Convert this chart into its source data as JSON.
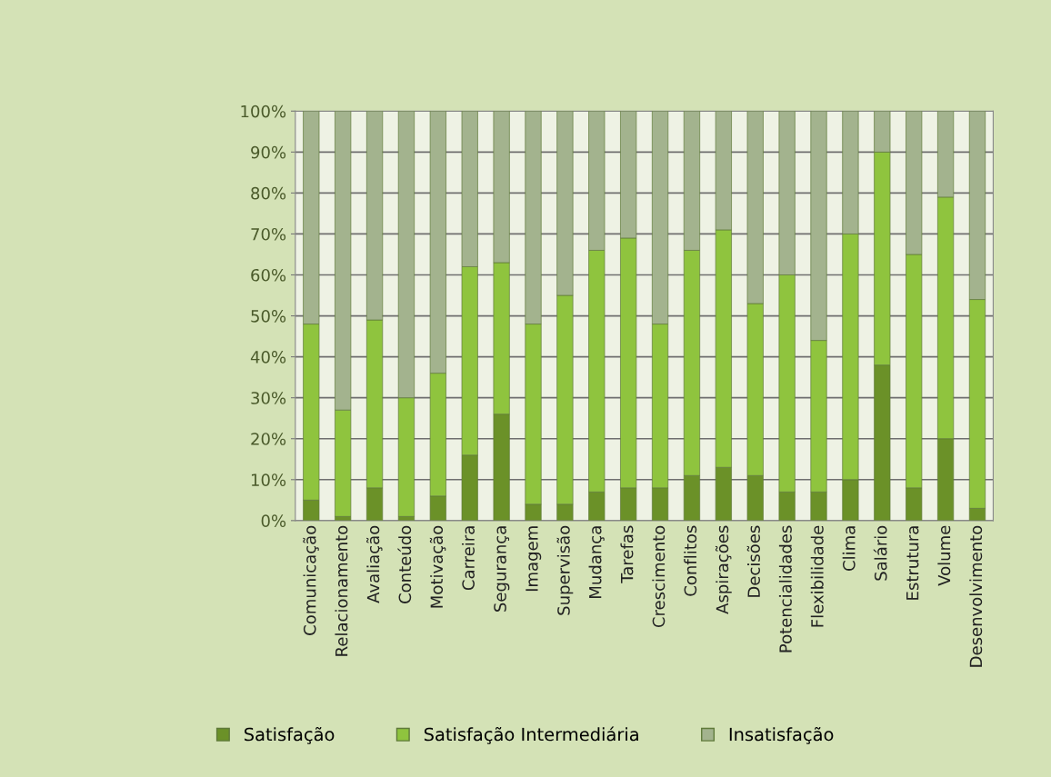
{
  "chart_data": {
    "type": "bar",
    "stacked": true,
    "categories": [
      "Comunicação",
      "Relacionamento",
      "Avaliação",
      "Conteúdo",
      "Motivação",
      "Carreira",
      "Segurança",
      "Imagem",
      "Supervisão",
      "Mudança",
      "Tarefas",
      "Crescimento",
      "Conflitos",
      "Aspirações",
      "Decisões",
      "Potencialidades",
      "Flexibilidade",
      "Clima",
      "Salário",
      "Estrutura",
      "Volume",
      "Desenvolvimento"
    ],
    "series": [
      {
        "name": "Satisfação",
        "color": "#6b9128",
        "values": [
          5,
          1,
          8,
          1,
          6,
          16,
          26,
          4,
          4,
          7,
          8,
          8,
          11,
          13,
          11,
          7,
          7,
          10,
          38,
          8,
          20,
          3
        ]
      },
      {
        "name": "Satisfação Intermediária",
        "color": "#8fc43e",
        "values": [
          43,
          26,
          41,
          29,
          30,
          46,
          37,
          44,
          51,
          59,
          61,
          40,
          55,
          58,
          42,
          53,
          37,
          60,
          52,
          57,
          59,
          51
        ]
      },
      {
        "name": "Insatisfação",
        "color": "#a3b38e",
        "values": [
          52,
          73,
          51,
          70,
          64,
          38,
          37,
          52,
          45,
          34,
          31,
          52,
          34,
          29,
          47,
          40,
          56,
          30,
          10,
          35,
          21,
          46
        ]
      }
    ],
    "ylim": [
      0,
      100
    ],
    "yticks": [
      {
        "value": 0,
        "label": "0%"
      },
      {
        "value": 10,
        "label": "10%"
      },
      {
        "value": 20,
        "label": "20%"
      },
      {
        "value": 30,
        "label": "30%"
      },
      {
        "value": 40,
        "label": "40%"
      },
      {
        "value": 50,
        "label": "50%"
      },
      {
        "value": 60,
        "label": "60%"
      },
      {
        "value": 70,
        "label": "70%"
      },
      {
        "value": 80,
        "label": "80%"
      },
      {
        "value": 90,
        "label": "90%"
      },
      {
        "value": 100,
        "label": "100%"
      }
    ],
    "grid": "y",
    "legend": "bottom"
  }
}
